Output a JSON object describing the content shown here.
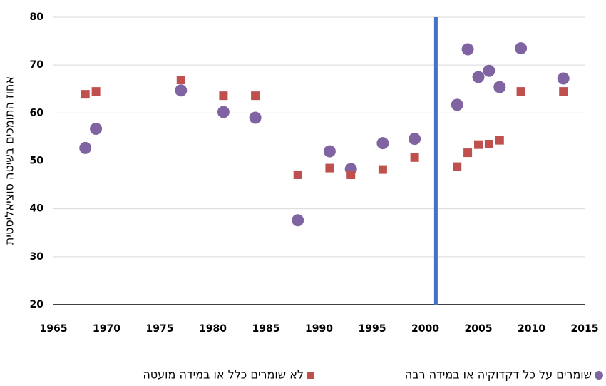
{
  "chart_data": {
    "type": "scatter",
    "y_label": "אחוז התומכים בשיטה סוציאליסטית",
    "x": [
      1968,
      1969,
      1977,
      1981,
      1984,
      1988,
      1991,
      1993,
      1996,
      1999,
      2003,
      2004,
      2005,
      2006,
      2007,
      2009,
      2013
    ],
    "series": [
      {
        "name": "שומרים על כל דקדוקיה או במידה רבה",
        "color": "#8064a2",
        "marker": "circle",
        "values": [
          52.7,
          56.7,
          64.7,
          60.2,
          59.0,
          37.6,
          52.0,
          48.3,
          53.7,
          54.6,
          61.7,
          73.3,
          67.5,
          68.8,
          65.4,
          73.5,
          67.2
        ]
      },
      {
        "name": "לא שומרים כלל או במידה מועטה",
        "color": "#c0504d",
        "marker": "square",
        "values": [
          63.9,
          64.5,
          66.9,
          63.6,
          63.6,
          47.1,
          48.5,
          47.1,
          48.2,
          50.7,
          48.8,
          51.7,
          53.4,
          53.5,
          54.3,
          64.5,
          64.5
        ]
      }
    ],
    "vline": {
      "x": 2001,
      "color": "#4472c4"
    },
    "xlim": [
      1965,
      2015
    ],
    "xticks": [
      1965,
      1970,
      1975,
      1980,
      1985,
      1990,
      1995,
      2000,
      2005,
      2010,
      2015
    ],
    "ylim": [
      20,
      80
    ],
    "yticks": [
      20,
      30,
      40,
      50,
      60,
      70,
      80
    ],
    "grid": true,
    "legend": "bottom"
  }
}
